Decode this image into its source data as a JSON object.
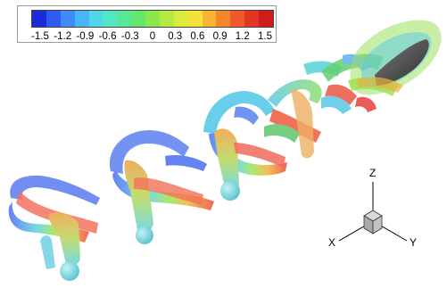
{
  "legend": {
    "colors": [
      "#1a2bd9",
      "#2f5cf0",
      "#3f8cf7",
      "#48b6f5",
      "#4fd6e8",
      "#52e6c4",
      "#56e898",
      "#66e66a",
      "#8be650",
      "#b5ea45",
      "#dcec3f",
      "#f6e03a",
      "#f8b432",
      "#f6862c",
      "#f05a28",
      "#e23522",
      "#cf1d1c"
    ],
    "ticks": [
      "-1.5",
      "-1.2",
      "-0.9",
      "-0.6",
      "-0.3",
      "0",
      "0.3",
      "0.6",
      "0.9",
      "1.2",
      "1.5"
    ]
  },
  "axes": {
    "x": "X",
    "y": "Y",
    "z": "Z"
  }
}
